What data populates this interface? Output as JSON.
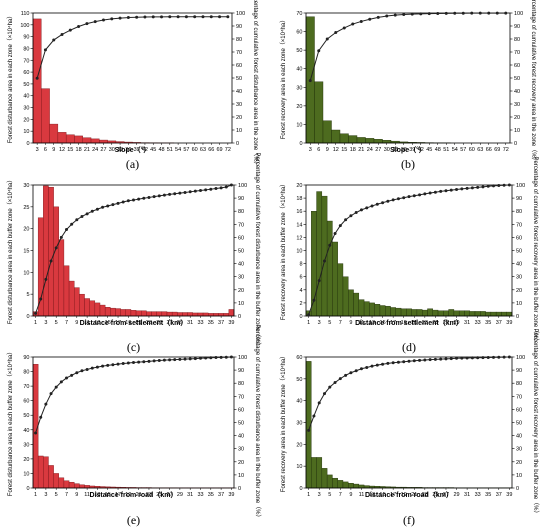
{
  "colors": {
    "disturbance": "#d9393f",
    "disturbance_edge": "#7a1418",
    "recovery": "#4d6b1f",
    "recovery_edge": "#1f2e08",
    "line": "#222222"
  },
  "chart_data": [
    {
      "id": "a",
      "type": "bar+line",
      "panel_label": "(a)",
      "color_key": "disturbance",
      "xlabel": "Slope（°）",
      "ylabel": "Forest disturbance area in each zone（×10⁴ha）",
      "y2label": "Percentage of cumulative forest disturbance area in the zone（%）",
      "ylim": [
        0,
        110
      ],
      "yticks": [
        0,
        10,
        20,
        30,
        40,
        50,
        60,
        70,
        80,
        90,
        100,
        110
      ],
      "y2lim": [
        0,
        100
      ],
      "y2ticks": [
        0,
        10,
        20,
        30,
        40,
        50,
        60,
        70,
        80,
        90,
        100
      ],
      "xticks": [
        "3",
        "6",
        "9",
        "12",
        "15",
        "18",
        "21",
        "24",
        "27",
        "30",
        "33",
        "36",
        "39",
        "42",
        "45",
        "48",
        "51",
        "54",
        "57",
        "60",
        "63",
        "66",
        "69",
        "72"
      ],
      "values": [
        105,
        46,
        16,
        9,
        7,
        6,
        4.5,
        3.5,
        2.5,
        1.8,
        1.2,
        0.8,
        0.5,
        0.3,
        0.2,
        0.1,
        0.1,
        0,
        0,
        0,
        0,
        0,
        0,
        0
      ],
      "cumulative": [
        49.8,
        71.6,
        79.2,
        83.5,
        86.8,
        89.6,
        91.8,
        93.4,
        94.6,
        95.5,
        96.1,
        96.5,
        96.7,
        96.9,
        97.0,
        97.0,
        97.1,
        97.1,
        97.1,
        97.1,
        97.1,
        97.1,
        97.1,
        97.1
      ]
    },
    {
      "id": "b",
      "type": "bar+line",
      "panel_label": "(b)",
      "color_key": "recovery",
      "xlabel": "Slope（°）",
      "ylabel": "Forest recovery area in each zone（×10⁴ha）",
      "y2label": "Percentage of cumulative forest recovery area in the zone（%）",
      "ylim": [
        0,
        70
      ],
      "yticks": [
        0,
        10,
        20,
        30,
        40,
        50,
        60,
        70
      ],
      "y2lim": [
        0,
        100
      ],
      "y2ticks": [
        0,
        10,
        20,
        30,
        40,
        50,
        60,
        70,
        80,
        90,
        100
      ],
      "xticks": [
        "3",
        "6",
        "9",
        "12",
        "15",
        "18",
        "21",
        "24",
        "27",
        "30",
        "33",
        "36",
        "39",
        "42",
        "45",
        "48",
        "51",
        "54",
        "57",
        "60",
        "63",
        "66",
        "69",
        "72"
      ],
      "values": [
        68,
        33,
        12,
        7,
        5,
        4,
        3,
        2.5,
        2,
        1.5,
        1,
        0.6,
        0.4,
        0.3,
        0.2,
        0.1,
        0.1,
        0,
        0,
        0,
        0,
        0,
        0,
        0
      ],
      "cumulative": [
        48,
        71,
        80,
        85,
        88.5,
        91.5,
        93.5,
        95.2,
        96.6,
        97.7,
        98.4,
        98.8,
        99.1,
        99.3,
        99.5,
        99.6,
        99.7,
        99.8,
        99.8,
        99.9,
        99.9,
        99.9,
        99.9,
        99.9
      ]
    },
    {
      "id": "c",
      "type": "bar+line",
      "panel_label": "(c)",
      "color_key": "disturbance",
      "xlabel": "Distance from settlement（km）",
      "ylabel": "Forest disturbance area in each buffer zone（×10⁴ha）",
      "y2label": "Percentage of cumulative forest disturbance area in the buffer zone（%）",
      "ylim": [
        0,
        30
      ],
      "yticks": [
        0,
        5,
        10,
        15,
        20,
        25,
        30
      ],
      "y2lim": [
        0,
        100
      ],
      "y2ticks": [
        0,
        10,
        20,
        30,
        40,
        50,
        60,
        70,
        80,
        90,
        100
      ],
      "xticks": [
        "1",
        "3",
        "5",
        "7",
        "9",
        "11",
        "13",
        "15",
        "17",
        "19",
        "21",
        "23",
        "25",
        "27",
        "29",
        "31",
        "33",
        "35",
        "37",
        "39"
      ],
      "values": [
        1,
        22.5,
        29.8,
        29.5,
        25,
        17.5,
        11.5,
        8,
        6.5,
        5,
        4,
        3.5,
        3,
        2.5,
        2,
        1.8,
        1.7,
        1.5,
        1.5,
        1.3,
        1.2,
        1.2,
        1,
        1,
        1,
        1,
        0.9,
        0.9,
        0.8,
        0.8,
        0.8,
        0.7,
        0.7,
        0.7,
        0.6,
        0.6,
        0.6,
        0.6,
        1.5
      ],
      "cumulative": [
        2,
        13,
        28,
        42,
        52,
        60,
        66,
        70,
        73.5,
        76,
        78,
        80,
        81.5,
        83,
        84,
        85,
        86,
        87,
        88,
        88.5,
        89.2,
        89.9,
        90.5,
        91.1,
        91.7,
        92.3,
        92.8,
        93.3,
        93.8,
        94.3,
        94.8,
        95.3,
        95.8,
        96.3,
        96.8,
        97.3,
        97.8,
        98.5,
        100
      ]
    },
    {
      "id": "d",
      "type": "bar+line",
      "panel_label": "(d)",
      "color_key": "recovery",
      "xlabel": "Distance from settlement（km）",
      "ylabel": "Forest recovery area in each buffer zone（×10⁴ha）",
      "y2label": "Percentage of cumulative forest recovery area in the buffer zone（%）",
      "ylim": [
        0,
        20
      ],
      "yticks": [
        0,
        2,
        4,
        6,
        8,
        10,
        12,
        14,
        16,
        18,
        20
      ],
      "y2lim": [
        0,
        100
      ],
      "y2ticks": [
        0,
        10,
        20,
        30,
        40,
        50,
        60,
        70,
        80,
        90,
        100
      ],
      "xticks": [
        "1",
        "3",
        "5",
        "7",
        "9",
        "11",
        "13",
        "15",
        "17",
        "19",
        "21",
        "23",
        "25",
        "27",
        "29",
        "31",
        "33",
        "35",
        "37",
        "39"
      ],
      "values": [
        0.8,
        16,
        19,
        18.3,
        14.5,
        11.3,
        8,
        6,
        4,
        3.5,
        2.5,
        2.2,
        2,
        1.8,
        1.6,
        1.5,
        1.3,
        1.2,
        1.1,
        1.1,
        1,
        1,
        0.9,
        1.1,
        0.9,
        0.8,
        0.8,
        1,
        0.8,
        0.8,
        0.8,
        0.7,
        0.7,
        0.7,
        0.6,
        0.6,
        0.6,
        0.6,
        0.6
      ],
      "cumulative": [
        1,
        12,
        27,
        42,
        54,
        63,
        69,
        73.5,
        76.5,
        79,
        81,
        82.5,
        84,
        85.3,
        86.5,
        87.6,
        88.6,
        89.5,
        90.3,
        91.1,
        91.8,
        92.5,
        93.2,
        93.9,
        94.5,
        95.1,
        95.6,
        96.1,
        96.6,
        97,
        97.4,
        97.8,
        98.2,
        98.6,
        99,
        99.3,
        99.6,
        99.8,
        100
      ]
    },
    {
      "id": "e",
      "type": "bar+line",
      "panel_label": "(e)",
      "color_key": "disturbance",
      "xlabel": "Distance from road（km）",
      "ylabel": "Forest disturbance area in each buffer zone（×10⁴ha）",
      "y2label": "Percentage of cumulative forest disturbance area in the buffer zone（%）",
      "ylim": [
        0,
        90
      ],
      "yticks": [
        0,
        10,
        20,
        30,
        40,
        50,
        60,
        70,
        80,
        90
      ],
      "y2lim": [
        0,
        100
      ],
      "y2ticks": [
        0,
        10,
        20,
        30,
        40,
        50,
        60,
        70,
        80,
        90,
        100
      ],
      "xticks": [
        "1",
        "3",
        "5",
        "7",
        "9",
        "11",
        "13",
        "15",
        "17",
        "19",
        "21",
        "23",
        "25",
        "27",
        "29",
        "31",
        "33",
        "35",
        "37",
        "39"
      ],
      "values": [
        85,
        22,
        21.5,
        15.5,
        10,
        7,
        5,
        4,
        3,
        2.2,
        1.8,
        1.4,
        1.2,
        1,
        0.8,
        0.7,
        0.6,
        0.5,
        0.4,
        0.4,
        0.3,
        0.3,
        0.3,
        0.2,
        0.2,
        0.2,
        0.2,
        0.2,
        0.1,
        0.1,
        0.1,
        0.1,
        0.1,
        0.1,
        0.1,
        0.1,
        0.1,
        0.1,
        0.1
      ],
      "cumulative": [
        42,
        54,
        64,
        72,
        77,
        81,
        84,
        86,
        88,
        89.5,
        90.5,
        91.5,
        92.3,
        93,
        93.6,
        94.1,
        94.6,
        95,
        95.4,
        95.8,
        96.1,
        96.4,
        96.7,
        97,
        97.3,
        97.6,
        97.8,
        98,
        98.2,
        98.4,
        98.6,
        98.8,
        99,
        99.2,
        99.4,
        99.6,
        99.7,
        99.8,
        100
      ]
    },
    {
      "id": "f",
      "type": "bar+line",
      "panel_label": "(f)",
      "color_key": "recovery",
      "xlabel": "Distance from road（km）",
      "ylabel": "Forest recovery area in each buffer zone（×10⁴ha）",
      "y2label": "Percentage of cumulative forest recovery area in the buffer zone（%）",
      "ylim": [
        0,
        60
      ],
      "yticks": [
        0,
        10,
        20,
        30,
        40,
        50,
        60
      ],
      "y2lim": [
        0,
        100
      ],
      "y2ticks": [
        0,
        10,
        20,
        30,
        40,
        50,
        60,
        70,
        80,
        90,
        100
      ],
      "xticks": [
        "1",
        "3",
        "5",
        "7",
        "9",
        "11",
        "13",
        "15",
        "17",
        "19",
        "21",
        "23",
        "25",
        "27",
        "29",
        "31",
        "33",
        "35",
        "37",
        "39"
      ],
      "values": [
        58,
        14,
        14,
        9,
        6,
        4.5,
        3.5,
        2.8,
        2.2,
        1.8,
        1.4,
        1.1,
        0.9,
        0.8,
        0.7,
        0.6,
        0.5,
        0.4,
        0.4,
        0.3,
        0.3,
        0.3,
        0.2,
        0.2,
        0.2,
        0.2,
        0.2,
        0.2,
        0.1,
        0.1,
        0.1,
        0.1,
        0.1,
        0.1,
        0.1,
        0.1,
        0.1,
        0.1,
        0.1
      ],
      "cumulative": [
        44,
        55,
        65,
        72,
        77,
        80.5,
        83.5,
        86,
        88,
        89.5,
        91,
        92,
        93,
        93.8,
        94.5,
        95.1,
        95.6,
        96,
        96.4,
        96.8,
        97.1,
        97.4,
        97.7,
        98,
        98.2,
        98.4,
        98.6,
        98.8,
        99,
        99.1,
        99.2,
        99.3,
        99.4,
        99.5,
        99.6,
        99.7,
        99.8,
        99.9,
        100
      ]
    }
  ]
}
